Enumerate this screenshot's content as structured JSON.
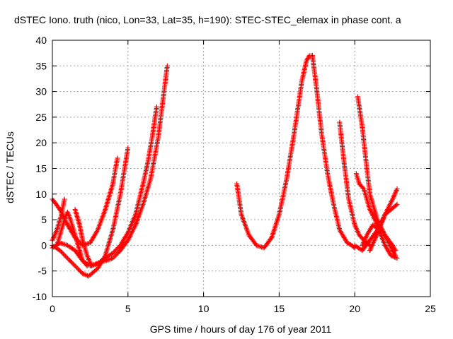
{
  "chart_data": {
    "type": "scatter",
    "title": "dSTEC Iono. truth (nico, Lon=33, Lat=35, h=190): STEC-STEC_elemax in phase cont. a",
    "xlabel": "GPS time / hours of day 176 of year 2011",
    "ylabel": "dSTEC  / TECUs",
    "xlim": [
      0,
      25
    ],
    "ylim": [
      -10,
      40
    ],
    "x_ticks": [
      0,
      5,
      10,
      15,
      20,
      25
    ],
    "y_ticks": [
      -10,
      -5,
      0,
      5,
      10,
      15,
      20,
      25,
      30,
      35,
      40
    ],
    "grid": true,
    "marker": "plus",
    "color": "#ff0000",
    "series": [
      {
        "x": [
          0.0,
          0.5,
          1.0,
          1.5,
          2.0,
          2.5,
          3.0,
          3.5,
          4.0,
          4.3
        ],
        "y": [
          9.0,
          7.0,
          4.0,
          1.5,
          0.0,
          0.5,
          3.0,
          7.0,
          12.0,
          17.0
        ]
      },
      {
        "x": [
          0.0,
          0.3,
          0.6,
          0.8
        ],
        "y": [
          1.0,
          3.0,
          6.0,
          9.0
        ]
      },
      {
        "x": [
          0.0,
          0.5,
          1.0,
          1.5,
          2.0,
          2.4,
          3.0,
          3.5,
          4.0,
          4.5,
          5.0
        ],
        "y": [
          0.0,
          -1.0,
          -2.5,
          -4.0,
          -5.5,
          -6.0,
          -4.5,
          -2.0,
          3.0,
          10.0,
          19.0
        ]
      },
      {
        "x": [
          1.5,
          1.8,
          2.0,
          2.3,
          2.6,
          3.0,
          3.5,
          4.0,
          4.5,
          5.0,
          5.5,
          6.0,
          6.5,
          7.0,
          7.3,
          7.6
        ],
        "y": [
          7.0,
          4.0,
          1.0,
          -2.0,
          -4.0,
          -3.5,
          -3.0,
          -2.5,
          -1.0,
          1.0,
          4.0,
          8.0,
          13.0,
          21.0,
          28.0,
          35.0
        ]
      },
      {
        "x": [
          0.0,
          0.5,
          1.0,
          1.5,
          2.0,
          2.5,
          3.0,
          3.5,
          4.0,
          4.5,
          5.0,
          5.5,
          6.0,
          6.3,
          6.6,
          6.9
        ],
        "y": [
          -0.5,
          0.5,
          0.0,
          -1.0,
          -3.0,
          -4.0,
          -3.5,
          -2.5,
          -1.5,
          0.0,
          2.5,
          6.0,
          12.0,
          16.0,
          21.0,
          27.0
        ]
      },
      {
        "x": [
          0.3,
          0.5,
          0.8,
          1.0,
          1.2,
          1.5,
          1.8,
          2.0,
          2.3
        ],
        "y": [
          0.0,
          2.0,
          5.0,
          6.5,
          5.0,
          2.0,
          -1.0,
          -3.0,
          -4.0
        ]
      },
      {
        "x": [
          12.2,
          12.5,
          13.0,
          13.5,
          14.0,
          14.5,
          15.0,
          15.5,
          16.0,
          16.5,
          16.8,
          17.0,
          17.2
        ],
        "y": [
          12.0,
          6.0,
          2.0,
          0.0,
          -0.5,
          1.5,
          6.0,
          13.0,
          22.0,
          32.0,
          36.0,
          37.0,
          37.0
        ]
      },
      {
        "x": [
          17.2,
          17.5,
          17.8,
          18.2,
          18.6,
          19.0,
          19.5,
          19.8,
          20.0
        ],
        "y": [
          37.0,
          30.0,
          22.0,
          14.0,
          8.0,
          3.0,
          0.5,
          0.0,
          -0.5
        ]
      },
      {
        "x": [
          19.0,
          19.3,
          19.6,
          20.0,
          20.3,
          20.6,
          21.0
        ],
        "y": [
          24.0,
          16.0,
          9.0,
          4.0,
          2.0,
          1.0,
          0.0
        ]
      },
      {
        "x": [
          20.2,
          20.5,
          20.8,
          21.0,
          21.5,
          22.0,
          22.5,
          22.7
        ],
        "y": [
          29.0,
          23.0,
          15.0,
          10.0,
          5.0,
          2.0,
          0.0,
          -1.0
        ]
      },
      {
        "x": [
          20.1,
          20.3,
          20.6,
          21.0,
          21.5,
          22.0,
          22.5,
          22.7
        ],
        "y": [
          14.0,
          12.0,
          11.0,
          7.0,
          4.0,
          2.0,
          -1.0,
          -2.0
        ]
      },
      {
        "x": [
          20.0,
          20.5,
          21.0,
          21.5,
          22.0,
          22.5,
          22.8
        ],
        "y": [
          0.0,
          -1.0,
          1.0,
          3.0,
          6.0,
          9.0,
          11.0
        ]
      },
      {
        "x": [
          20.5,
          20.8,
          21.2,
          21.6,
          22.0,
          22.4,
          22.8
        ],
        "y": [
          0.0,
          2.0,
          4.0,
          3.0,
          0.0,
          -2.0,
          -2.5
        ]
      },
      {
        "x": [
          21.0,
          21.3,
          21.6,
          22.0,
          22.4,
          22.8
        ],
        "y": [
          -1.0,
          1.0,
          3.0,
          6.0,
          7.0,
          8.0
        ]
      }
    ]
  }
}
